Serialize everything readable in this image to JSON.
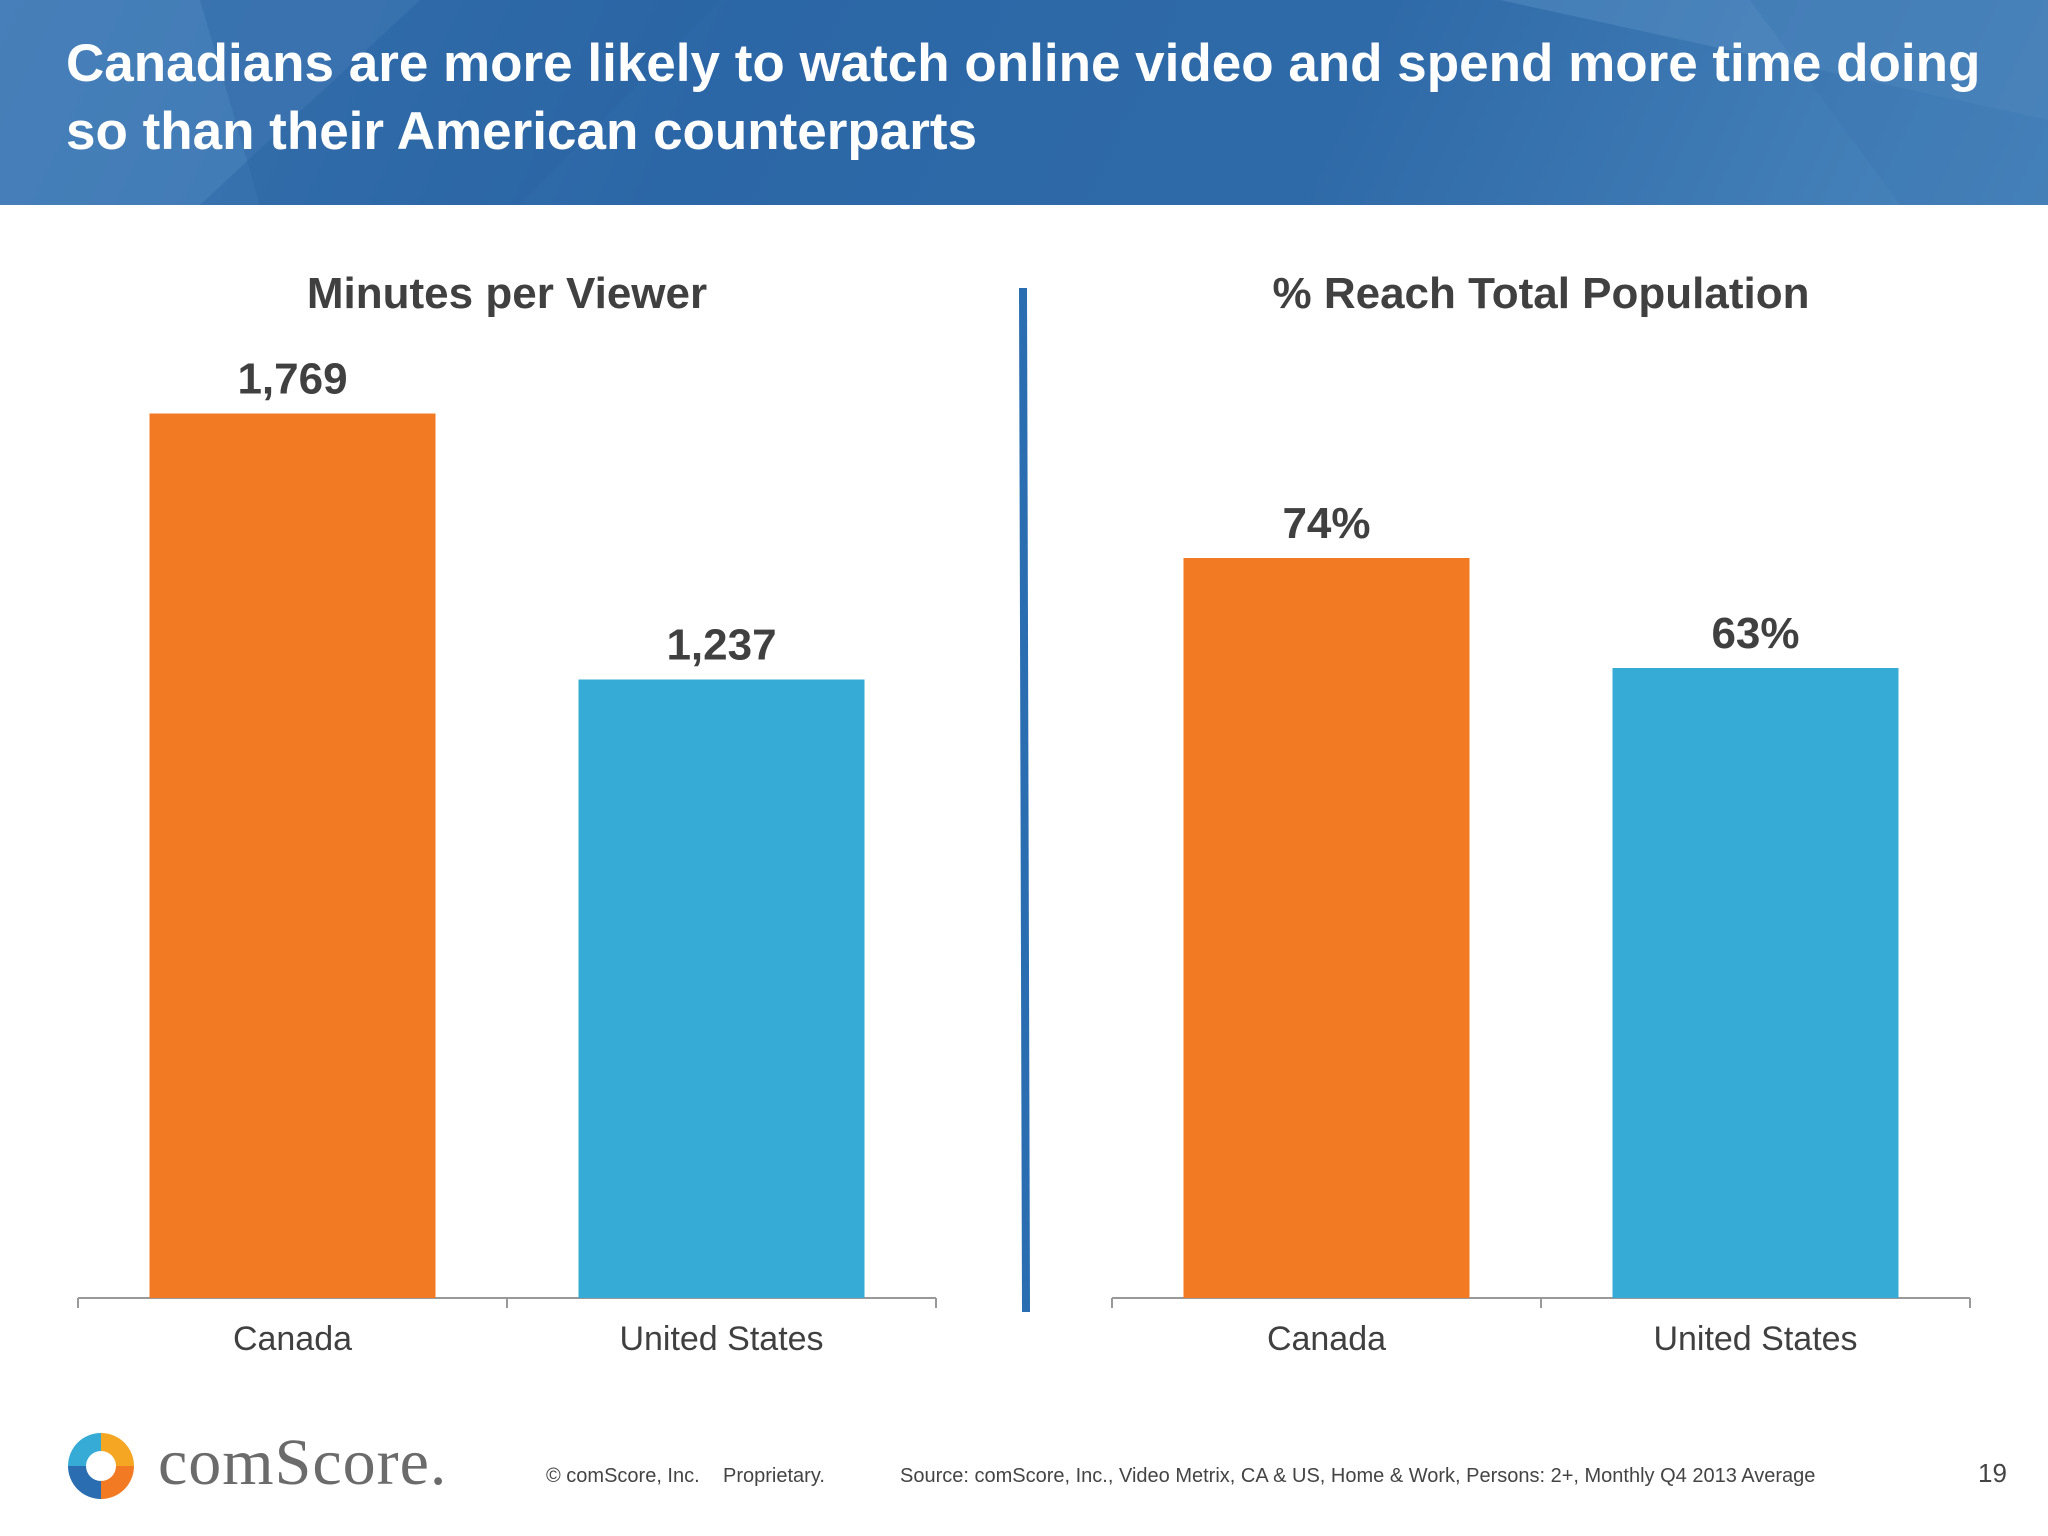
{
  "slide": {
    "title": "Canadians are more likely to watch online video and spend more time doing so than their American counterparts",
    "page_number": "19"
  },
  "colors": {
    "header_blue": "#2f6aa8",
    "canada": "#f27a22",
    "united_states": "#35abd6",
    "divider": "#2a6db0",
    "axis": "#999999",
    "text_dark": "#404040"
  },
  "chart_data": [
    {
      "type": "bar",
      "title": "Minutes per Viewer",
      "categories": [
        "Canada",
        "United States"
      ],
      "values": [
        1769,
        1237
      ],
      "value_labels": [
        "1,769",
        "1,237"
      ],
      "colors": [
        "#f27a22",
        "#35abd6"
      ],
      "xlabel": "",
      "ylabel": "",
      "ylim": [
        0,
        2000
      ],
      "grid": false
    },
    {
      "type": "bar",
      "title": "% Reach Total Population",
      "categories": [
        "Canada",
        "United States"
      ],
      "values": [
        74,
        63
      ],
      "value_labels": [
        "74%",
        "63%"
      ],
      "colors": [
        "#f27a22",
        "#35abd6"
      ],
      "xlabel": "",
      "ylabel": "",
      "ylim": [
        0,
        100
      ],
      "grid": false
    }
  ],
  "footer": {
    "logo_text": "comScore.",
    "copyright": "© comScore, Inc.",
    "proprietary": "Proprietary.",
    "source": "Source: comScore, Inc., Video Metrix, CA & US, Home & Work, Persons: 2+, Monthly Q4 2013 Average"
  }
}
